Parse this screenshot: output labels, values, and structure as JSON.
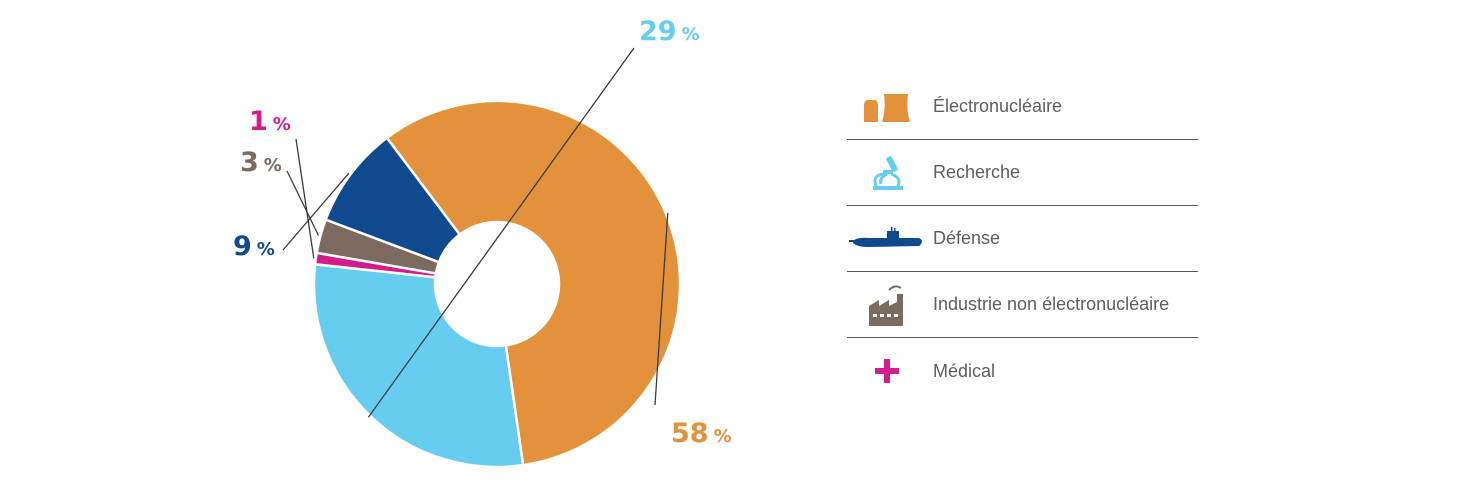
{
  "chart_data": {
    "type": "pie",
    "donut": true,
    "slices": [
      {
        "label": "Électronucléaire",
        "value": 58,
        "color": "#e3913a",
        "pct_text": "58",
        "pct_sym": "%"
      },
      {
        "label": "Recherche",
        "value": 29,
        "color": "#67cdf0",
        "pct_text": "29",
        "pct_sym": "%"
      },
      {
        "label": "Médical",
        "value": 1,
        "color": "#d41b8c",
        "pct_text": "1",
        "pct_sym": "%"
      },
      {
        "label": "Industrie non électronucléaire",
        "value": 3,
        "color": "#7b6a5f",
        "pct_text": "3",
        "pct_sym": "%"
      },
      {
        "label": "Défense",
        "value": 9,
        "color": "#0f4a8f",
        "pct_text": "9",
        "pct_sym": "%"
      }
    ],
    "legend_placement": "right"
  },
  "legend": {
    "items": [
      {
        "label": "Électronucléaire",
        "icon": "cooling-towers-icon",
        "color": "#e3913a"
      },
      {
        "label": "Recherche",
        "icon": "microscope-icon",
        "color": "#67cdf0"
      },
      {
        "label": "Défense",
        "icon": "submarine-icon",
        "color": "#0f4a8f"
      },
      {
        "label": "Industrie non électronucléaire",
        "icon": "factory-icon",
        "color": "#7b6a5f"
      },
      {
        "label": "Médical",
        "icon": "medical-cross-icon",
        "color": "#d41b8c"
      }
    ]
  }
}
